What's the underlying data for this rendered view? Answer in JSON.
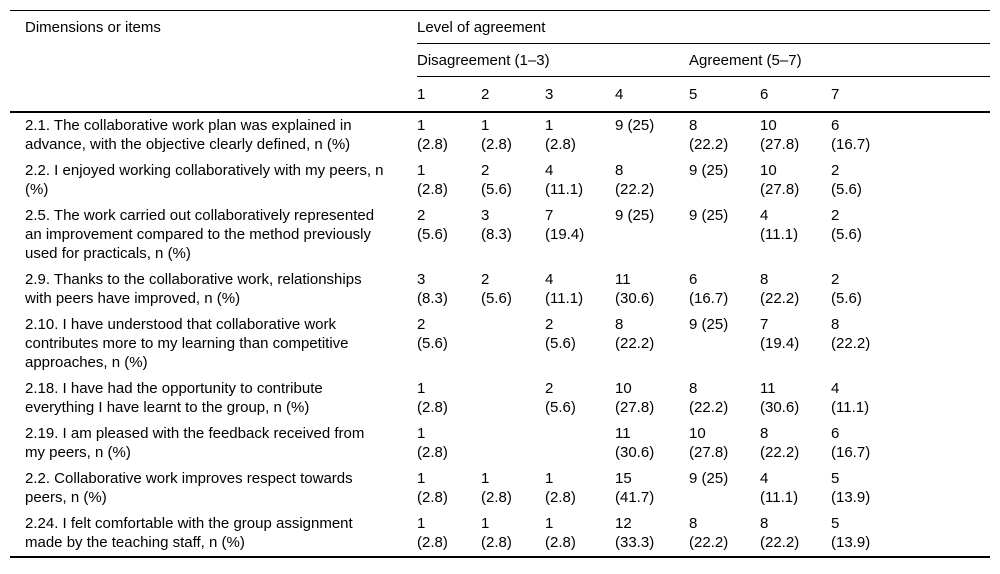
{
  "page": {
    "background_color": "#ffffff",
    "text_color": "#000000",
    "rule_color": "#000000"
  },
  "table": {
    "columns_header": "Dimensions or items",
    "group_header": "Level of agreement",
    "subgroups": [
      {
        "label": "Disagreement (1–3)",
        "span": 4
      },
      {
        "label": "Agreement (5–7)",
        "span": 3
      }
    ],
    "scale": [
      "1",
      "2",
      "3",
      "4",
      "5",
      "6",
      "7"
    ],
    "rows": [
      {
        "item": "2.1. The collaborative work plan was explained in advance, with the objective clearly defined, n (%)",
        "cells": [
          [
            "1",
            "(2.8)"
          ],
          [
            "1",
            "(2.8)"
          ],
          [
            "1",
            "(2.8)"
          ],
          [
            "9 (25)"
          ],
          [
            "8",
            "(22.2)"
          ],
          [
            "10",
            "(27.8)"
          ],
          [
            "6",
            "(16.7)"
          ]
        ]
      },
      {
        "item": "2.2. I enjoyed working collaboratively with my peers, n (%)",
        "cells": [
          [
            "1",
            "(2.8)"
          ],
          [
            "2",
            "(5.6)"
          ],
          [
            "4",
            "(11.1)"
          ],
          [
            "8",
            "(22.2)"
          ],
          [
            "9 (25)"
          ],
          [
            "10",
            "(27.8)"
          ],
          [
            "2",
            "(5.6)"
          ]
        ]
      },
      {
        "item": "2.5. The work carried out collaboratively represented an improvement compared to the method previously used for practicals, n (%)",
        "cells": [
          [
            "2",
            "(5.6)"
          ],
          [
            "3",
            "(8.3)"
          ],
          [
            "7",
            "(19.4)"
          ],
          [
            "9 (25)"
          ],
          [
            "9 (25)"
          ],
          [
            "4",
            "(11.1)"
          ],
          [
            "2",
            "(5.6)"
          ]
        ]
      },
      {
        "item": "2.9. Thanks to the collaborative work, relationships with peers have improved, n (%)",
        "cells": [
          [
            "3",
            "(8.3)"
          ],
          [
            "2",
            "(5.6)"
          ],
          [
            "4",
            "(11.1)"
          ],
          [
            "11",
            "(30.6)"
          ],
          [
            "6",
            "(16.7)"
          ],
          [
            "8",
            "(22.2)"
          ],
          [
            "2",
            "(5.6)"
          ]
        ]
      },
      {
        "item": "2.10. I have understood that collaborative work contributes more to my learning than competitive approaches, n (%)",
        "cells": [
          [
            "2",
            "(5.6)"
          ],
          [],
          [
            "2",
            "(5.6)"
          ],
          [
            "8",
            "(22.2)"
          ],
          [
            "9 (25)"
          ],
          [
            "7",
            "(19.4)"
          ],
          [
            "8",
            "(22.2)"
          ]
        ]
      },
      {
        "item": "2.18. I have had the opportunity to contribute everything I have learnt to the group, n (%)",
        "cells": [
          [
            "1",
            "(2.8)"
          ],
          [],
          [
            "2",
            "(5.6)"
          ],
          [
            "10",
            "(27.8)"
          ],
          [
            "8",
            "(22.2)"
          ],
          [
            "11",
            "(30.6)"
          ],
          [
            "4",
            "(11.1)"
          ]
        ]
      },
      {
        "item": "2.19. I am pleased with the feedback received from my peers, n (%)",
        "cells": [
          [
            "1",
            "(2.8)"
          ],
          [],
          [],
          [
            "11",
            "(30.6)"
          ],
          [
            "10",
            "(27.8)"
          ],
          [
            "8",
            "(22.2)"
          ],
          [
            "6",
            "(16.7)"
          ]
        ]
      },
      {
        "item": "2.2. Collaborative work improves respect towards peers, n (%)",
        "cells": [
          [
            "1",
            "(2.8)"
          ],
          [
            "1",
            "(2.8)"
          ],
          [
            "1",
            "(2.8)"
          ],
          [
            "15",
            "(41.7)"
          ],
          [
            "9 (25)"
          ],
          [
            "4",
            "(11.1)"
          ],
          [
            "5",
            "(13.9)"
          ]
        ]
      },
      {
        "item": "2.24. I felt comfortable with the group assignment made by the teaching staff, n (%)",
        "cells": [
          [
            "1",
            "(2.8)"
          ],
          [
            "1",
            "(2.8)"
          ],
          [
            "1",
            "(2.8)"
          ],
          [
            "12",
            "(33.3)"
          ],
          [
            "8",
            "(22.2)"
          ],
          [
            "8",
            "(22.2)"
          ],
          [
            "5",
            "(13.9)"
          ]
        ]
      }
    ]
  }
}
